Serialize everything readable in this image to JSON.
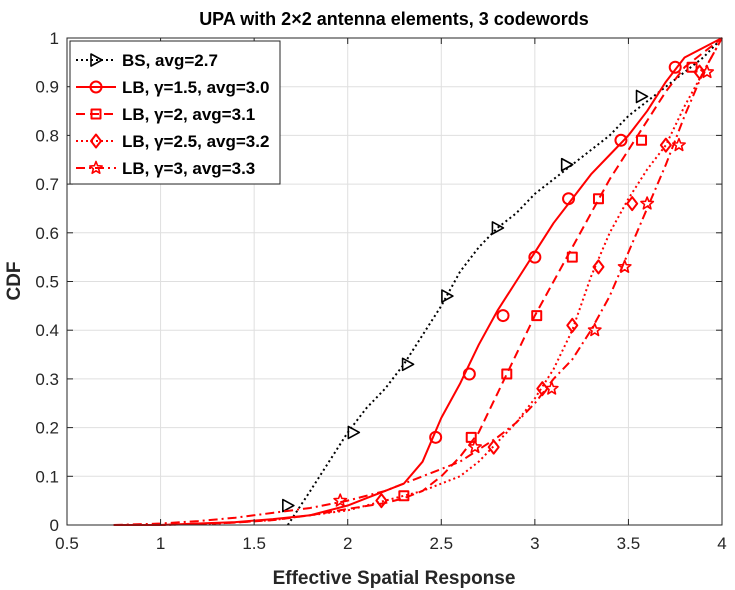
{
  "chart_data": {
    "type": "line",
    "title": "UPA with 2×2 antenna elements, 3 codewords",
    "xlabel": "Effective Spatial Response",
    "ylabel": "CDF",
    "xlim": [
      0.5,
      4
    ],
    "ylim": [
      0,
      1
    ],
    "xticks": [
      0.5,
      1,
      1.5,
      2,
      2.5,
      3,
      3.5,
      4
    ],
    "xtick_labels": [
      "0.5",
      "1",
      "1.5",
      "2",
      "2.5",
      "3",
      "3.5",
      "4"
    ],
    "yticks": [
      0,
      0.1,
      0.2,
      0.3,
      0.4,
      0.5,
      0.6,
      0.7,
      0.8,
      0.9,
      1
    ],
    "ytick_labels": [
      "0",
      "0.1",
      "0.2",
      "0.3",
      "0.4",
      "0.5",
      "0.6",
      "0.7",
      "0.8",
      "0.9",
      "1"
    ],
    "grid": true,
    "legend_position": "top-left",
    "series": [
      {
        "name": "BS, avg=2.7",
        "color": "#000000",
        "dash": "dotted",
        "marker": "triangle-right",
        "x": [
          1.68,
          1.8,
          1.9,
          2.0,
          2.1,
          2.2,
          2.3,
          2.4,
          2.5,
          2.6,
          2.7,
          2.8,
          2.9,
          3.0,
          3.1,
          3.2,
          3.3,
          3.4,
          3.5,
          3.6,
          3.7,
          3.8,
          3.9,
          4.0
        ],
        "y": [
          0.0,
          0.07,
          0.13,
          0.19,
          0.24,
          0.28,
          0.33,
          0.39,
          0.45,
          0.52,
          0.57,
          0.61,
          0.64,
          0.68,
          0.71,
          0.74,
          0.77,
          0.8,
          0.84,
          0.87,
          0.9,
          0.93,
          0.96,
          1.0
        ],
        "marker_x": [
          1.68,
          2.03,
          2.32,
          2.53,
          2.8,
          3.17,
          3.57
        ],
        "marker_y": [
          0.04,
          0.19,
          0.33,
          0.47,
          0.61,
          0.74,
          0.88
        ]
      },
      {
        "name": "LB, γ=1.5, avg=3.0",
        "color": "#ff0000",
        "dash": "solid",
        "marker": "circle",
        "x": [
          0.75,
          1.0,
          1.2,
          1.4,
          1.6,
          1.8,
          1.9,
          2.0,
          2.1,
          2.2,
          2.3,
          2.4,
          2.5,
          2.6,
          2.7,
          2.8,
          2.9,
          3.0,
          3.1,
          3.2,
          3.3,
          3.4,
          3.5,
          3.6,
          3.7,
          3.8,
          3.9,
          4.0
        ],
        "y": [
          0.0,
          0.0,
          0.003,
          0.006,
          0.012,
          0.02,
          0.03,
          0.04,
          0.055,
          0.07,
          0.085,
          0.13,
          0.22,
          0.29,
          0.37,
          0.44,
          0.5,
          0.56,
          0.62,
          0.67,
          0.72,
          0.76,
          0.8,
          0.85,
          0.91,
          0.96,
          0.98,
          1.0
        ],
        "marker_x": [
          2.47,
          2.65,
          2.83,
          3.0,
          3.18,
          3.46,
          3.75
        ],
        "marker_y": [
          0.18,
          0.31,
          0.43,
          0.55,
          0.67,
          0.79,
          0.94
        ]
      },
      {
        "name": "LB, γ=2, avg=3.1",
        "color": "#ff0000",
        "dash": "dashed",
        "marker": "square",
        "x": [
          0.75,
          1.0,
          1.2,
          1.4,
          1.6,
          1.8,
          2.0,
          2.2,
          2.3,
          2.4,
          2.5,
          2.6,
          2.7,
          2.8,
          2.9,
          3.0,
          3.1,
          3.2,
          3.3,
          3.4,
          3.5,
          3.6,
          3.7,
          3.8,
          3.9,
          4.0
        ],
        "y": [
          0.0,
          0.0,
          0.002,
          0.005,
          0.01,
          0.02,
          0.033,
          0.045,
          0.055,
          0.07,
          0.1,
          0.14,
          0.19,
          0.27,
          0.35,
          0.43,
          0.5,
          0.57,
          0.64,
          0.71,
          0.77,
          0.83,
          0.89,
          0.94,
          0.97,
          1.0
        ],
        "marker_x": [
          2.3,
          2.66,
          2.85,
          3.01,
          3.2,
          3.34,
          3.57,
          3.84
        ],
        "marker_y": [
          0.06,
          0.18,
          0.31,
          0.43,
          0.55,
          0.67,
          0.79,
          0.94
        ]
      },
      {
        "name": "LB, γ=2.5, avg=3.2",
        "color": "#ff0000",
        "dash": "dotted",
        "marker": "diamond",
        "x": [
          0.75,
          1.0,
          1.3,
          1.6,
          1.8,
          2.0,
          2.2,
          2.4,
          2.6,
          2.7,
          2.8,
          2.9,
          3.0,
          3.1,
          3.2,
          3.3,
          3.4,
          3.5,
          3.6,
          3.7,
          3.8,
          3.9,
          4.0
        ],
        "y": [
          0.0,
          0.0,
          0.003,
          0.01,
          0.02,
          0.03,
          0.05,
          0.07,
          0.1,
          0.13,
          0.17,
          0.21,
          0.26,
          0.32,
          0.4,
          0.51,
          0.6,
          0.67,
          0.73,
          0.78,
          0.86,
          0.93,
          1.0
        ],
        "marker_x": [
          2.18,
          2.78,
          3.04,
          3.2,
          3.34,
          3.52,
          3.7,
          3.88
        ],
        "marker_y": [
          0.05,
          0.16,
          0.28,
          0.41,
          0.53,
          0.66,
          0.78,
          0.93
        ]
      },
      {
        "name": "LB, γ=3, avg=3.3",
        "color": "#ff0000",
        "dash": "dashdot",
        "marker": "star",
        "x": [
          0.75,
          1.0,
          1.2,
          1.4,
          1.6,
          1.8,
          2.0,
          2.2,
          2.4,
          2.6,
          2.8,
          2.9,
          3.0,
          3.1,
          3.2,
          3.3,
          3.4,
          3.5,
          3.6,
          3.7,
          3.8,
          3.9,
          4.0
        ],
        "y": [
          0.0,
          0.003,
          0.008,
          0.015,
          0.025,
          0.035,
          0.05,
          0.07,
          0.1,
          0.13,
          0.18,
          0.21,
          0.25,
          0.3,
          0.34,
          0.4,
          0.47,
          0.56,
          0.65,
          0.74,
          0.84,
          0.93,
          1.0
        ],
        "marker_x": [
          1.96,
          2.68,
          3.09,
          3.32,
          3.48,
          3.6,
          3.77,
          3.92
        ],
        "marker_y": [
          0.05,
          0.16,
          0.28,
          0.4,
          0.53,
          0.66,
          0.78,
          0.93
        ]
      }
    ]
  }
}
